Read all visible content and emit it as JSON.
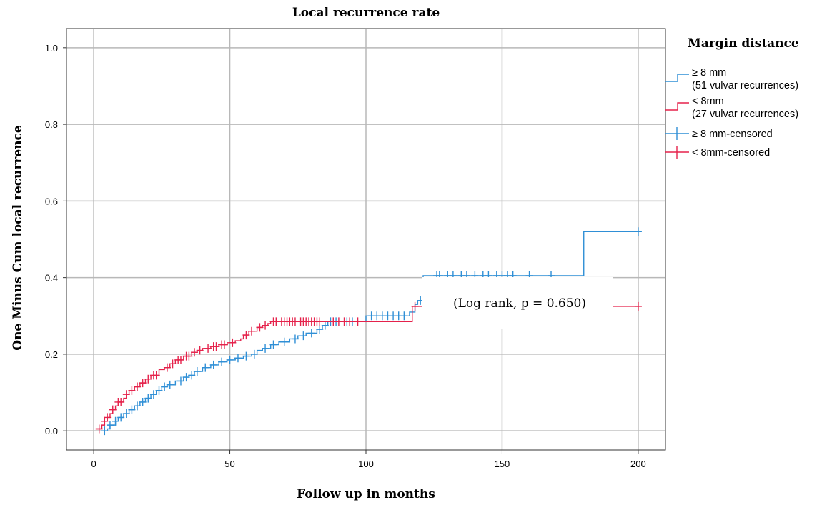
{
  "chart_data": {
    "type": "line",
    "title": "Local recurrence rate",
    "xlabel": "Follow up in months",
    "ylabel": "One Minus Cum local recurrence",
    "xlim": [
      -10,
      210
    ],
    "ylim": [
      -0.05,
      1.05
    ],
    "xticks": [
      0,
      50,
      100,
      150,
      200
    ],
    "yticks": [
      0.0,
      0.2,
      0.4,
      0.6,
      0.8,
      1.0
    ],
    "ytick_labels": [
      "0.0",
      "0.2",
      "0.4",
      "0.6",
      "0.8",
      "1.0"
    ],
    "grid": true,
    "legend_title": "Margin distance",
    "legend_position": "right",
    "annotation": "(Log rank, p = 0.650)",
    "series": [
      {
        "name": "≥ 8 mm",
        "name_line2": "(51 vulvar recurrences)",
        "censored_name": "≥ 8 mm-censored",
        "color": "#2f8fd6",
        "x": [
          3,
          5,
          6,
          8,
          9,
          11,
          13,
          15,
          17,
          19,
          21,
          23,
          25,
          27,
          30,
          33,
          35,
          37,
          40,
          43,
          46,
          49,
          52,
          55,
          58,
          60,
          62,
          65,
          68,
          72,
          75,
          78,
          82,
          84,
          86,
          100,
          116,
          118,
          119,
          121,
          180,
          200
        ],
        "y": [
          0.0,
          0.005,
          0.015,
          0.025,
          0.035,
          0.045,
          0.055,
          0.065,
          0.075,
          0.085,
          0.095,
          0.105,
          0.115,
          0.12,
          0.13,
          0.14,
          0.145,
          0.155,
          0.165,
          0.172,
          0.18,
          0.185,
          0.19,
          0.195,
          0.2,
          0.21,
          0.215,
          0.225,
          0.232,
          0.24,
          0.248,
          0.255,
          0.265,
          0.275,
          0.285,
          0.3,
          0.31,
          0.33,
          0.34,
          0.405,
          0.52,
          0.52
        ],
        "censored": [
          4,
          6,
          8,
          10,
          12,
          14,
          16,
          18,
          20,
          22,
          24,
          26,
          28,
          32,
          34,
          36,
          38,
          41,
          44,
          47,
          50,
          53,
          56,
          59,
          63,
          66,
          70,
          74,
          77,
          80,
          83,
          85,
          87,
          89,
          93,
          95,
          102,
          104,
          106,
          108,
          110,
          112,
          114,
          120,
          126,
          127,
          130,
          132,
          135,
          137,
          140,
          143,
          145,
          148,
          150,
          152,
          154,
          160,
          168,
          200
        ]
      },
      {
        "name": "< 8mm",
        "name_line2": "(27 vulvar recurrences)",
        "censored_name": "< 8mm-censored",
        "color": "#e5224b",
        "x": [
          1,
          3,
          4,
          5,
          6,
          7,
          8,
          9,
          11,
          12,
          13,
          15,
          17,
          19,
          21,
          24,
          26,
          28,
          30,
          33,
          36,
          38,
          40,
          43,
          46,
          49,
          52,
          54,
          55,
          57,
          60,
          62,
          64,
          65,
          68,
          75,
          85,
          117,
          120,
          200
        ],
        "y": [
          0.005,
          0.015,
          0.025,
          0.035,
          0.045,
          0.055,
          0.065,
          0.075,
          0.085,
          0.095,
          0.105,
          0.115,
          0.125,
          0.135,
          0.145,
          0.16,
          0.165,
          0.175,
          0.185,
          0.195,
          0.205,
          0.21,
          0.215,
          0.22,
          0.225,
          0.23,
          0.235,
          0.24,
          0.25,
          0.26,
          0.27,
          0.275,
          0.28,
          0.285,
          0.285,
          0.285,
          0.285,
          0.325,
          0.325,
          0.325
        ],
        "censored": [
          2,
          4,
          5,
          7,
          9,
          10,
          12,
          14,
          16,
          18,
          20,
          22,
          23,
          27,
          29,
          31,
          32,
          34,
          35,
          37,
          39,
          42,
          44,
          45,
          47,
          48,
          51,
          56,
          58,
          61,
          63,
          66,
          67,
          69,
          70,
          71,
          72,
          73,
          74,
          76,
          77,
          78,
          79,
          80,
          81,
          82,
          83,
          88,
          90,
          92,
          94,
          97,
          118,
          200
        ]
      }
    ]
  }
}
